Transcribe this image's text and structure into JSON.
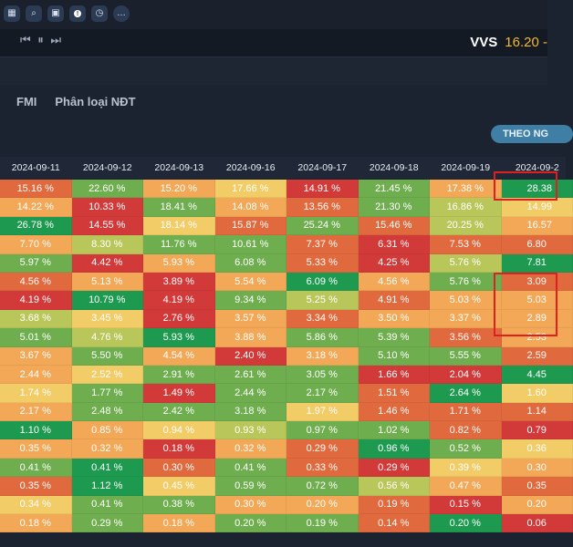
{
  "toolbar": {
    "icons": [
      "grid-icon",
      "search-icon",
      "gift-icon",
      "info-icon",
      "clock-icon",
      "more-icon"
    ],
    "info_glyph": "!",
    "more_glyph": "…"
  },
  "player": {
    "controls": "⏮ ⏸ ⏭"
  },
  "ticker": {
    "symbol": "VVS",
    "price": "16.20 -"
  },
  "tabs": [
    "FMI",
    "Phân loại NĐT"
  ],
  "theo_button": "THEO NG",
  "colors": {
    "red": "#d23a3a",
    "orange_red": "#e06a3e",
    "orange": "#f2a856",
    "yellow": "#f2cc66",
    "yellow_green": "#b9c75a",
    "green": "#6fae4f",
    "dark_green": "#1e9a50"
  },
  "table": {
    "headers": [
      "2024-09-11",
      "2024-09-12",
      "2024-09-13",
      "2024-09-16",
      "2024-09-17",
      "2024-09-18",
      "2024-09-19",
      "2024-09-2"
    ],
    "rows": [
      [
        [
          "15.16 %",
          "orange_red"
        ],
        [
          "22.60 %",
          "green"
        ],
        [
          "15.20 %",
          "orange"
        ],
        [
          "17.66 %",
          "yellow"
        ],
        [
          "14.91 %",
          "red"
        ],
        [
          "21.45 %",
          "green"
        ],
        [
          "17.38 %",
          "orange"
        ],
        [
          "28.38",
          "dark_green"
        ]
      ],
      [
        [
          "14.22 %",
          "orange"
        ],
        [
          "10.33 %",
          "red"
        ],
        [
          "18.41 %",
          "green"
        ],
        [
          "14.08 %",
          "orange"
        ],
        [
          "13.56 %",
          "orange_red"
        ],
        [
          "21.30 %",
          "green"
        ],
        [
          "16.86 %",
          "yellow_green"
        ],
        [
          "14.99",
          "yellow"
        ]
      ],
      [
        [
          "26.78 %",
          "dark_green"
        ],
        [
          "14.55 %",
          "red"
        ],
        [
          "18.14 %",
          "yellow"
        ],
        [
          "15.87 %",
          "orange_red"
        ],
        [
          "25.24 %",
          "green"
        ],
        [
          "15.46 %",
          "orange_red"
        ],
        [
          "20.25 %",
          "yellow_green"
        ],
        [
          "16.57",
          "orange"
        ]
      ],
      [
        [
          "7.70 %",
          "orange"
        ],
        [
          "8.30 %",
          "yellow_green"
        ],
        [
          "11.76 %",
          "green"
        ],
        [
          "10.61 %",
          "green"
        ],
        [
          "7.37 %",
          "orange_red"
        ],
        [
          "6.31 %",
          "red"
        ],
        [
          "7.53 %",
          "orange_red"
        ],
        [
          "6.80",
          "orange_red"
        ]
      ],
      [
        [
          "5.97 %",
          "green"
        ],
        [
          "4.42 %",
          "red"
        ],
        [
          "5.93 %",
          "orange"
        ],
        [
          "6.08 %",
          "green"
        ],
        [
          "5.33 %",
          "orange_red"
        ],
        [
          "4.25 %",
          "red"
        ],
        [
          "5.76 %",
          "yellow_green"
        ],
        [
          "7.81",
          "dark_green"
        ]
      ],
      [
        [
          "4.56 %",
          "orange_red"
        ],
        [
          "5.13 %",
          "orange"
        ],
        [
          "3.89 %",
          "red"
        ],
        [
          "5.54 %",
          "orange"
        ],
        [
          "6.09 %",
          "dark_green"
        ],
        [
          "4.56 %",
          "orange"
        ],
        [
          "5.76 %",
          "green"
        ],
        [
          "3.09",
          "orange_red"
        ]
      ],
      [
        [
          "4.19 %",
          "red"
        ],
        [
          "10.79 %",
          "dark_green"
        ],
        [
          "4.19 %",
          "red"
        ],
        [
          "9.34 %",
          "green"
        ],
        [
          "5.25 %",
          "yellow_green"
        ],
        [
          "4.91 %",
          "orange_red"
        ],
        [
          "5.03 %",
          "orange"
        ],
        [
          "5.03",
          "orange"
        ]
      ],
      [
        [
          "3.68 %",
          "yellow_green"
        ],
        [
          "3.45 %",
          "yellow"
        ],
        [
          "2.76 %",
          "red"
        ],
        [
          "3.57 %",
          "orange"
        ],
        [
          "3.34 %",
          "orange_red"
        ],
        [
          "3.50 %",
          "orange"
        ],
        [
          "3.37 %",
          "orange"
        ],
        [
          "2.89",
          "orange"
        ]
      ],
      [
        [
          "5.01 %",
          "green"
        ],
        [
          "4.76 %",
          "yellow_green"
        ],
        [
          "5.93 %",
          "dark_green"
        ],
        [
          "3.88 %",
          "orange"
        ],
        [
          "5.86 %",
          "green"
        ],
        [
          "5.39 %",
          "green"
        ],
        [
          "3.56 %",
          "orange_red"
        ],
        [
          "2.53",
          "orange"
        ]
      ],
      [
        [
          "3.67 %",
          "orange"
        ],
        [
          "5.50 %",
          "green"
        ],
        [
          "4.54 %",
          "orange"
        ],
        [
          "2.40 %",
          "red"
        ],
        [
          "3.18 %",
          "orange"
        ],
        [
          "5.10 %",
          "green"
        ],
        [
          "5.55 %",
          "green"
        ],
        [
          "2.59",
          "orange_red"
        ]
      ],
      [
        [
          "2.44 %",
          "orange"
        ],
        [
          "2.52 %",
          "yellow"
        ],
        [
          "2.91 %",
          "green"
        ],
        [
          "2.61 %",
          "green"
        ],
        [
          "3.05 %",
          "green"
        ],
        [
          "1.66 %",
          "red"
        ],
        [
          "2.04 %",
          "red"
        ],
        [
          "4.45",
          "dark_green"
        ]
      ],
      [
        [
          "1.74 %",
          "yellow"
        ],
        [
          "1.77 %",
          "green"
        ],
        [
          "1.49 %",
          "red"
        ],
        [
          "2.44 %",
          "green"
        ],
        [
          "2.17 %",
          "green"
        ],
        [
          "1.51 %",
          "orange_red"
        ],
        [
          "2.64 %",
          "dark_green"
        ],
        [
          "1.60",
          "yellow"
        ]
      ],
      [
        [
          "2.17 %",
          "orange"
        ],
        [
          "2.48 %",
          "green"
        ],
        [
          "2.42 %",
          "green"
        ],
        [
          "3.18 %",
          "green"
        ],
        [
          "1.97 %",
          "yellow"
        ],
        [
          "1.46 %",
          "orange_red"
        ],
        [
          "1.71 %",
          "orange_red"
        ],
        [
          "1.14",
          "orange_red"
        ]
      ],
      [
        [
          "1.10 %",
          "dark_green"
        ],
        [
          "0.85 %",
          "orange"
        ],
        [
          "0.94 %",
          "yellow"
        ],
        [
          "0.93 %",
          "yellow_green"
        ],
        [
          "0.97 %",
          "green"
        ],
        [
          "1.02 %",
          "green"
        ],
        [
          "0.82 %",
          "orange_red"
        ],
        [
          "0.79",
          "red"
        ]
      ],
      [
        [
          "0.35 %",
          "orange"
        ],
        [
          "0.32 %",
          "orange"
        ],
        [
          "0.18 %",
          "red"
        ],
        [
          "0.32 %",
          "orange"
        ],
        [
          "0.29 %",
          "orange_red"
        ],
        [
          "0.96 %",
          "dark_green"
        ],
        [
          "0.52 %",
          "green"
        ],
        [
          "0.36",
          "yellow"
        ]
      ],
      [
        [
          "0.41 %",
          "green"
        ],
        [
          "0.41 %",
          "dark_green"
        ],
        [
          "0.30 %",
          "orange_red"
        ],
        [
          "0.41 %",
          "green"
        ],
        [
          "0.33 %",
          "orange_red"
        ],
        [
          "0.29 %",
          "red"
        ],
        [
          "0.39 %",
          "yellow"
        ],
        [
          "0.30",
          "orange"
        ]
      ],
      [
        [
          "0.35 %",
          "orange_red"
        ],
        [
          "1.12 %",
          "dark_green"
        ],
        [
          "0.45 %",
          "yellow"
        ],
        [
          "0.59 %",
          "green"
        ],
        [
          "0.72 %",
          "green"
        ],
        [
          "0.56 %",
          "yellow_green"
        ],
        [
          "0.47 %",
          "orange"
        ],
        [
          "0.35",
          "orange_red"
        ]
      ],
      [
        [
          "0.34 %",
          "yellow"
        ],
        [
          "0.41 %",
          "green"
        ],
        [
          "0.38 %",
          "green"
        ],
        [
          "0.30 %",
          "orange"
        ],
        [
          "0.20 %",
          "orange"
        ],
        [
          "0.19 %",
          "orange_red"
        ],
        [
          "0.15 %",
          "red"
        ],
        [
          "0.20",
          "orange"
        ]
      ],
      [
        [
          "0.18 %",
          "orange"
        ],
        [
          "0.29 %",
          "green"
        ],
        [
          "0.18 %",
          "orange"
        ],
        [
          "0.20 %",
          "green"
        ],
        [
          "0.19 %",
          "green"
        ],
        [
          "0.14 %",
          "orange_red"
        ],
        [
          "0.20 %",
          "dark_green"
        ],
        [
          "0.06",
          "red"
        ]
      ]
    ]
  }
}
